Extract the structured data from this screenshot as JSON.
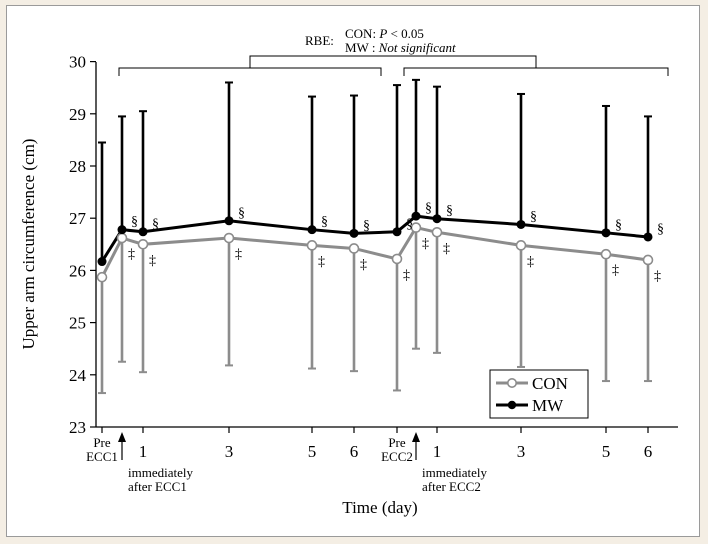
{
  "chart_data": {
    "type": "line",
    "xlabel": "Time (day)",
    "ylabel": "Upper arm circumference (cm)",
    "ylim": [
      23,
      30
    ],
    "yticks": [
      23,
      24,
      25,
      26,
      27,
      28,
      29,
      30
    ],
    "xticks": [
      {
        "label": "Pre ECC1"
      },
      {
        "label": "1"
      },
      {
        "label": "3"
      },
      {
        "label": "5"
      },
      {
        "label": "6"
      },
      {
        "label": "Pre ECC2"
      },
      {
        "label": "1"
      },
      {
        "label": "3"
      },
      {
        "label": "5"
      },
      {
        "label": "6"
      }
    ],
    "annotations": [
      {
        "id": "after1",
        "text": [
          "immediately",
          "after ECC1"
        ]
      },
      {
        "id": "after2",
        "text": [
          "immediately",
          "after ECC2"
        ]
      }
    ],
    "rbe": {
      "title": "RBE:",
      "line1_prefix": "CON: ",
      "line1_p": "P",
      "line1_suffix": " < 0.05",
      "line2_prefix": "MW : ",
      "line2_value": "Not significant"
    },
    "markers": {
      "sig_mw": "§",
      "sig_con": "‡"
    },
    "legend": {
      "position": "bottom-right"
    },
    "series": [
      {
        "name": "CON",
        "color": "#8c8c8c",
        "values": [
          25.87,
          26.62,
          26.5,
          26.62,
          26.48,
          26.42,
          26.22,
          26.82,
          26.73,
          26.48,
          26.31,
          26.2
        ],
        "err_low": [
          23.65,
          24.25,
          24.05,
          24.18,
          24.12,
          24.07,
          23.7,
          24.5,
          24.42,
          24.15,
          23.88,
          23.88
        ],
        "sig": [
          false,
          true,
          true,
          true,
          true,
          true,
          true,
          true,
          true,
          true,
          true,
          true
        ]
      },
      {
        "name": "MW",
        "color": "#000000",
        "values": [
          26.17,
          26.78,
          26.74,
          26.95,
          26.78,
          26.71,
          26.74,
          27.04,
          26.99,
          26.88,
          26.72,
          26.64
        ],
        "err_high": [
          28.45,
          28.95,
          29.05,
          29.6,
          29.33,
          29.35,
          29.55,
          29.65,
          29.52,
          29.38,
          29.15,
          28.95
        ],
        "sig": [
          false,
          true,
          true,
          true,
          true,
          true,
          true,
          true,
          true,
          true,
          true,
          true
        ]
      }
    ]
  }
}
